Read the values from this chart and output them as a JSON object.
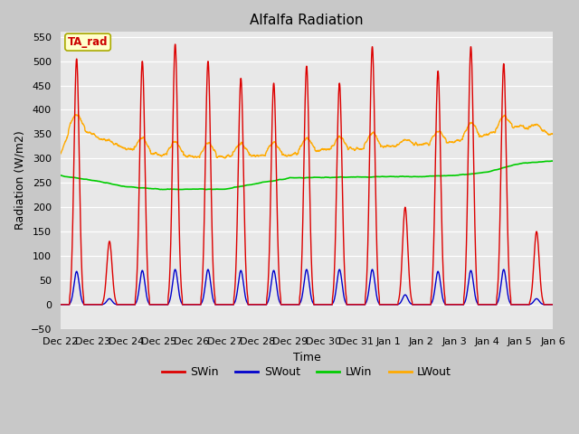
{
  "title": "Alfalfa Radiation",
  "xlabel": "Time",
  "ylabel": "Radiation (W/m2)",
  "ylim": [
    -50,
    560
  ],
  "annotation_text": "TA_rad",
  "annotation_color": "#cc0000",
  "annotation_bg": "#ffffcc",
  "annotation_border": "#aaaa00",
  "fig_bg": "#c8c8c8",
  "plot_bg": "#e8e8e8",
  "grid_color": "#ffffff",
  "series": {
    "SWin": {
      "color": "#dd0000",
      "lw": 1.0
    },
    "SWout": {
      "color": "#0000cc",
      "lw": 1.0
    },
    "LWin": {
      "color": "#00cc00",
      "lw": 1.2
    },
    "LWout": {
      "color": "#ffaa00",
      "lw": 1.0
    }
  },
  "xtick_labels": [
    "Dec 22",
    "Dec 23",
    "Dec 24",
    "Dec 25",
    "Dec 26",
    "Dec 27",
    "Dec 28",
    "Dec 29",
    "Dec 30",
    "Dec 31",
    "Jan 1",
    "Jan 2",
    "Jan 3",
    "Jan 4",
    "Jan 5",
    "Jan 6"
  ],
  "n_days": 15,
  "points_per_day": 144
}
